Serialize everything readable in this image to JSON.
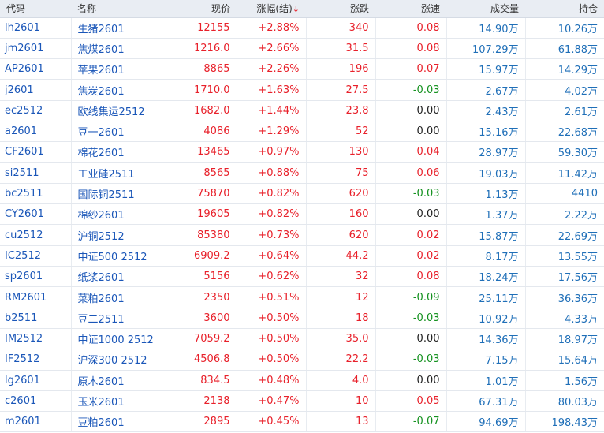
{
  "headers": {
    "code": "代码",
    "name": "名称",
    "price": "现价",
    "change_pct": "涨幅(结)",
    "sort_arrow": "↓",
    "change": "涨跌",
    "speed": "涨速",
    "volume": "成交量",
    "open_interest": "持仓"
  },
  "colors": {
    "up": "#e8202a",
    "down": "#13911e",
    "link": "#1a56b8",
    "header_bg": "#e9edf3"
  },
  "rows": [
    {
      "code": "lh2601",
      "name": "生猪2601",
      "price": "12155",
      "pct": "+2.88%",
      "chg": "340",
      "speed": "0.08",
      "speed_dir": "up",
      "vol": "14.90万",
      "oi": "10.26万"
    },
    {
      "code": "jm2601",
      "name": "焦煤2601",
      "price": "1216.0",
      "pct": "+2.66%",
      "chg": "31.5",
      "speed": "0.08",
      "speed_dir": "up",
      "vol": "107.29万",
      "oi": "61.88万"
    },
    {
      "code": "AP2601",
      "name": "苹果2601",
      "price": "8865",
      "pct": "+2.26%",
      "chg": "196",
      "speed": "0.07",
      "speed_dir": "up",
      "vol": "15.97万",
      "oi": "14.29万"
    },
    {
      "code": "j2601",
      "name": "焦炭2601",
      "price": "1710.0",
      "pct": "+1.63%",
      "chg": "27.5",
      "speed": "-0.03",
      "speed_dir": "down",
      "vol": "2.67万",
      "oi": "4.02万"
    },
    {
      "code": "ec2512",
      "name": "欧线集运2512",
      "price": "1682.0",
      "pct": "+1.44%",
      "chg": "23.8",
      "speed": "0.00",
      "speed_dir": "flat",
      "vol": "2.43万",
      "oi": "2.61万"
    },
    {
      "code": "a2601",
      "name": "豆一2601",
      "price": "4086",
      "pct": "+1.29%",
      "chg": "52",
      "speed": "0.00",
      "speed_dir": "flat",
      "vol": "15.16万",
      "oi": "22.68万"
    },
    {
      "code": "CF2601",
      "name": "棉花2601",
      "price": "13465",
      "pct": "+0.97%",
      "chg": "130",
      "speed": "0.04",
      "speed_dir": "up",
      "vol": "28.97万",
      "oi": "59.30万"
    },
    {
      "code": "si2511",
      "name": "工业硅2511",
      "price": "8565",
      "pct": "+0.88%",
      "chg": "75",
      "speed": "0.06",
      "speed_dir": "up",
      "vol": "19.03万",
      "oi": "11.42万"
    },
    {
      "code": "bc2511",
      "name": "国际铜2511",
      "price": "75870",
      "pct": "+0.82%",
      "chg": "620",
      "speed": "-0.03",
      "speed_dir": "down",
      "vol": "1.13万",
      "oi": "4410"
    },
    {
      "code": "CY2601",
      "name": "棉纱2601",
      "price": "19605",
      "pct": "+0.82%",
      "chg": "160",
      "speed": "0.00",
      "speed_dir": "flat",
      "vol": "1.37万",
      "oi": "2.22万"
    },
    {
      "code": "cu2512",
      "name": "沪铜2512",
      "price": "85380",
      "pct": "+0.73%",
      "chg": "620",
      "speed": "0.02",
      "speed_dir": "up",
      "vol": "15.87万",
      "oi": "22.69万"
    },
    {
      "code": "IC2512",
      "name": "中证500 2512",
      "price": "6909.2",
      "pct": "+0.64%",
      "chg": "44.2",
      "speed": "0.02",
      "speed_dir": "up",
      "vol": "8.17万",
      "oi": "13.55万"
    },
    {
      "code": "sp2601",
      "name": "纸浆2601",
      "price": "5156",
      "pct": "+0.62%",
      "chg": "32",
      "speed": "0.08",
      "speed_dir": "up",
      "vol": "18.24万",
      "oi": "17.56万"
    },
    {
      "code": "RM2601",
      "name": "菜粕2601",
      "price": "2350",
      "pct": "+0.51%",
      "chg": "12",
      "speed": "-0.09",
      "speed_dir": "down",
      "vol": "25.11万",
      "oi": "36.36万"
    },
    {
      "code": "b2511",
      "name": "豆二2511",
      "price": "3600",
      "pct": "+0.50%",
      "chg": "18",
      "speed": "-0.03",
      "speed_dir": "down",
      "vol": "10.92万",
      "oi": "4.33万"
    },
    {
      "code": "IM2512",
      "name": "中证1000 2512",
      "price": "7059.2",
      "pct": "+0.50%",
      "chg": "35.0",
      "speed": "0.00",
      "speed_dir": "flat",
      "vol": "14.36万",
      "oi": "18.97万"
    },
    {
      "code": "IF2512",
      "name": "沪深300 2512",
      "price": "4506.8",
      "pct": "+0.50%",
      "chg": "22.2",
      "speed": "-0.03",
      "speed_dir": "down",
      "vol": "7.15万",
      "oi": "15.64万"
    },
    {
      "code": "lg2601",
      "name": "原木2601",
      "price": "834.5",
      "pct": "+0.48%",
      "chg": "4.0",
      "speed": "0.00",
      "speed_dir": "flat",
      "vol": "1.01万",
      "oi": "1.56万"
    },
    {
      "code": "c2601",
      "name": "玉米2601",
      "price": "2138",
      "pct": "+0.47%",
      "chg": "10",
      "speed": "0.05",
      "speed_dir": "up",
      "vol": "67.31万",
      "oi": "80.03万"
    },
    {
      "code": "m2601",
      "name": "豆粕2601",
      "price": "2895",
      "pct": "+0.45%",
      "chg": "13",
      "speed": "-0.07",
      "speed_dir": "down",
      "vol": "94.69万",
      "oi": "198.43万"
    }
  ]
}
